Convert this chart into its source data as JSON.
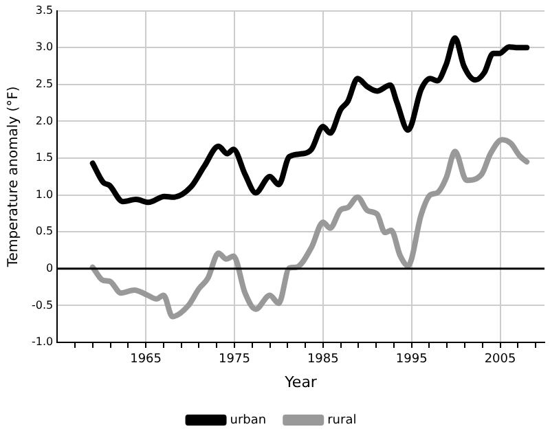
{
  "chart_data": {
    "type": "line",
    "xlabel": "Year",
    "ylabel": "Temperature anomaly (°F)",
    "xlim": [
      1955,
      2010
    ],
    "xticks": [
      {
        "value": 1957,
        "label": null
      },
      {
        "value": 1959,
        "label": null
      },
      {
        "value": 1961,
        "label": null
      },
      {
        "value": 1963,
        "label": null
      },
      {
        "value": 1965,
        "label": "1965"
      },
      {
        "value": 1967,
        "label": null
      },
      {
        "value": 1969,
        "label": null
      },
      {
        "value": 1971,
        "label": null
      },
      {
        "value": 1973,
        "label": null
      },
      {
        "value": 1975,
        "label": "1975"
      },
      {
        "value": 1977,
        "label": null
      },
      {
        "value": 1979,
        "label": null
      },
      {
        "value": 1981,
        "label": null
      },
      {
        "value": 1983,
        "label": null
      },
      {
        "value": 1985,
        "label": "1985"
      },
      {
        "value": 1987,
        "label": null
      },
      {
        "value": 1989,
        "label": null
      },
      {
        "value": 1991,
        "label": null
      },
      {
        "value": 1993,
        "label": null
      },
      {
        "value": 1995,
        "label": "1995"
      },
      {
        "value": 1997,
        "label": null
      },
      {
        "value": 1999,
        "label": null
      },
      {
        "value": 2001,
        "label": null
      },
      {
        "value": 2003,
        "label": null
      },
      {
        "value": 2005,
        "label": "2005"
      },
      {
        "value": 2007,
        "label": null
      },
      {
        "value": 2009,
        "label": null
      }
    ],
    "ylim": [
      -1.0,
      3.5
    ],
    "yticks": [
      {
        "value": -1.0,
        "label": "-1.0"
      },
      {
        "value": -0.5,
        "label": "-0.5"
      },
      0,
      {
        "value": 0.5,
        "label": "0.5"
      },
      {
        "value": 1.0,
        "label": "1.0"
      },
      {
        "value": 1.5,
        "label": "1.5"
      },
      {
        "value": 2.0,
        "label": "2.0"
      },
      {
        "value": 2.5,
        "label": "2.5"
      },
      {
        "value": 3.0,
        "label": "3.0"
      },
      {
        "value": 3.5,
        "label": "3.5"
      }
    ],
    "grid": true,
    "legend": "bottom",
    "marker": "none",
    "line_style": "solid",
    "ref_lines": [
      {
        "axis": "y",
        "value": 0,
        "color": "#000000"
      }
    ],
    "series": [
      {
        "name": "urban",
        "color": "#000000",
        "x": [
          1959,
          1960.2,
          1960.9,
          1962.4,
          1963.9,
          1965.3,
          1967.1,
          1968.1,
          1970.1,
          1971.6,
          1973.2,
          1974.2,
          1974.9,
          1976.2,
          1977.4,
          1979,
          1980,
          1981.2,
          1982.7,
          1983.7,
          1985,
          1985.8,
          1987,
          1987.8,
          1988.9,
          1990,
          1991.1,
          1992.6,
          1993.3,
          1994.6,
          1996.1,
          1997.1,
          1997.9,
          1998.9,
          1999.9,
          2000.9,
          2002.2,
          2003.2,
          2004.2,
          2004.9,
          2006,
          2007,
          2008
        ],
        "values": [
          1.43,
          1.17,
          1.13,
          0.91,
          0.94,
          0.9,
          0.98,
          0.97,
          1.11,
          1.39,
          1.66,
          1.56,
          1.62,
          1.28,
          1.03,
          1.25,
          1.14,
          1.52,
          1.56,
          1.62,
          1.93,
          1.84,
          2.16,
          2.27,
          2.58,
          2.47,
          2.41,
          2.49,
          2.27,
          1.88,
          2.44,
          2.58,
          2.55,
          2.77,
          3.13,
          2.75,
          2.56,
          2.66,
          2.92,
          2.92,
          3.01,
          3.0,
          3.0
        ]
      },
      {
        "name": "rural",
        "color": "#999999",
        "x": [
          1959,
          1960.2,
          1960.9,
          1962.2,
          1963.7,
          1965.2,
          1966.2,
          1967,
          1968,
          1969.8,
          1971,
          1972,
          1973.2,
          1974.1,
          1974.9,
          1976.2,
          1977.4,
          1979,
          1980,
          1981.2,
          1982,
          1983.7,
          1985,
          1985.8,
          1987,
          1987.8,
          1988.9,
          1990,
          1991.1,
          1992,
          1992.7,
          1993.7,
          1994.6,
          1996.1,
          1997.1,
          1997.9,
          1998.9,
          1999.9,
          2001.2,
          2002.9,
          2003.9,
          2005.2,
          2006.2,
          2007.2,
          2008
        ],
        "values": [
          0.02,
          -0.16,
          -0.17,
          -0.33,
          -0.29,
          -0.36,
          -0.41,
          -0.36,
          -0.65,
          -0.5,
          -0.27,
          -0.13,
          0.21,
          0.13,
          0.17,
          -0.33,
          -0.55,
          -0.36,
          -0.47,
          0.01,
          0.02,
          0.29,
          0.63,
          0.55,
          0.8,
          0.83,
          0.97,
          0.79,
          0.74,
          0.49,
          0.52,
          0.18,
          0.04,
          0.74,
          1.0,
          1.03,
          1.23,
          1.59,
          1.2,
          1.28,
          1.56,
          1.75,
          1.7,
          1.53,
          1.45
        ]
      }
    ]
  }
}
